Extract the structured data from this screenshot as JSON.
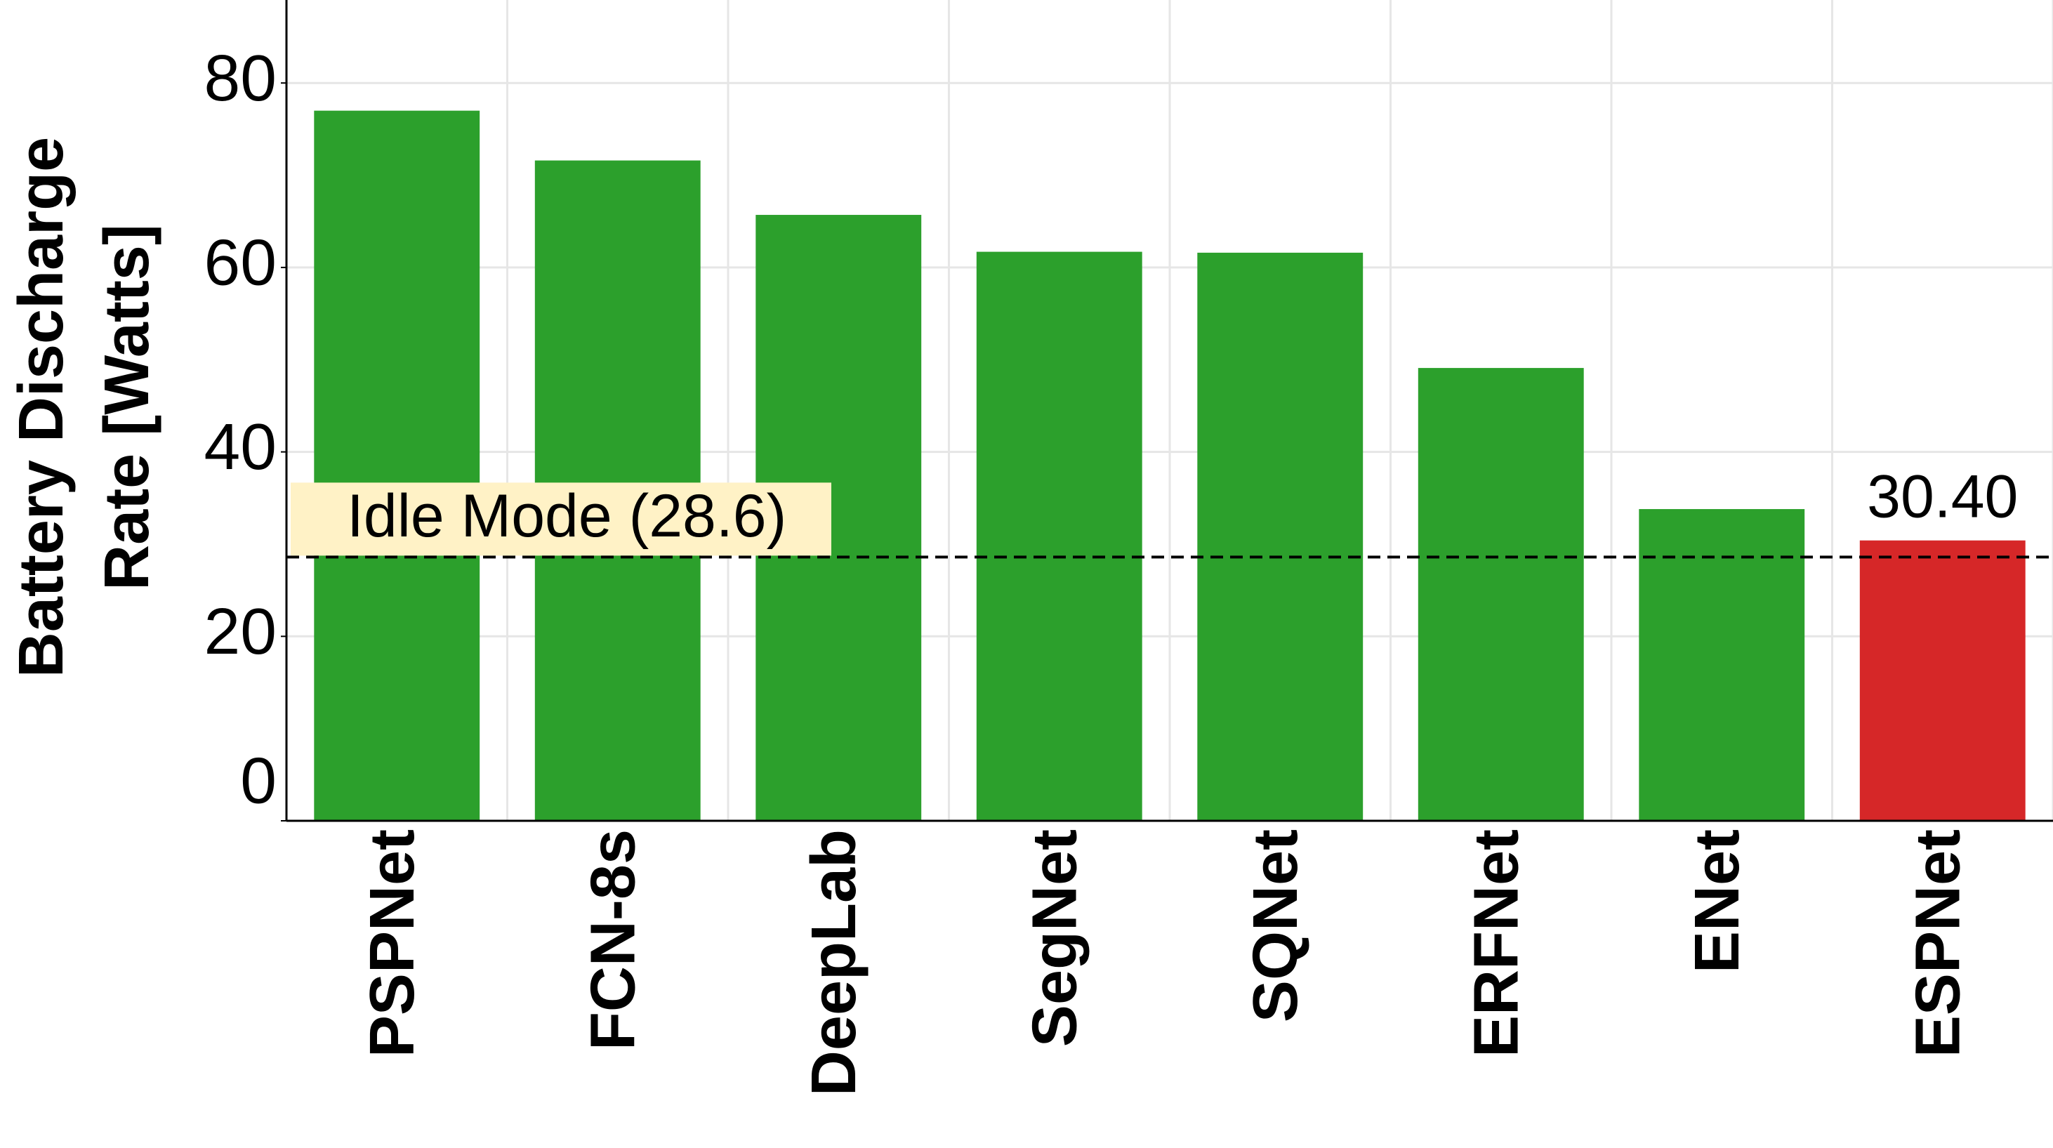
{
  "chart_data": {
    "type": "bar",
    "y_label": [
      "Battery Discharge",
      "Rate [Watts]"
    ],
    "categories": [
      "PSPNet",
      "FCN-8s",
      "DeepLab",
      "SegNet",
      "SQNet",
      "ERFNet",
      "ENet",
      "ESPNet"
    ],
    "values": [
      77.0,
      71.6,
      65.7,
      61.7,
      61.6,
      49.1,
      33.8,
      30.4
    ],
    "value_labels": [
      null,
      null,
      null,
      null,
      null,
      null,
      null,
      "30.40"
    ],
    "colors": [
      "#2ca02c",
      "#2ca02c",
      "#2ca02c",
      "#2ca02c",
      "#2ca02c",
      "#2ca02c",
      "#2ca02c",
      "#d62728"
    ],
    "ylim": [
      0,
      89
    ],
    "yticks": [
      0,
      20,
      40,
      60,
      80
    ],
    "grid": true,
    "annotation": {
      "text": "Idle Mode (28.6)",
      "value": 28.6
    }
  }
}
